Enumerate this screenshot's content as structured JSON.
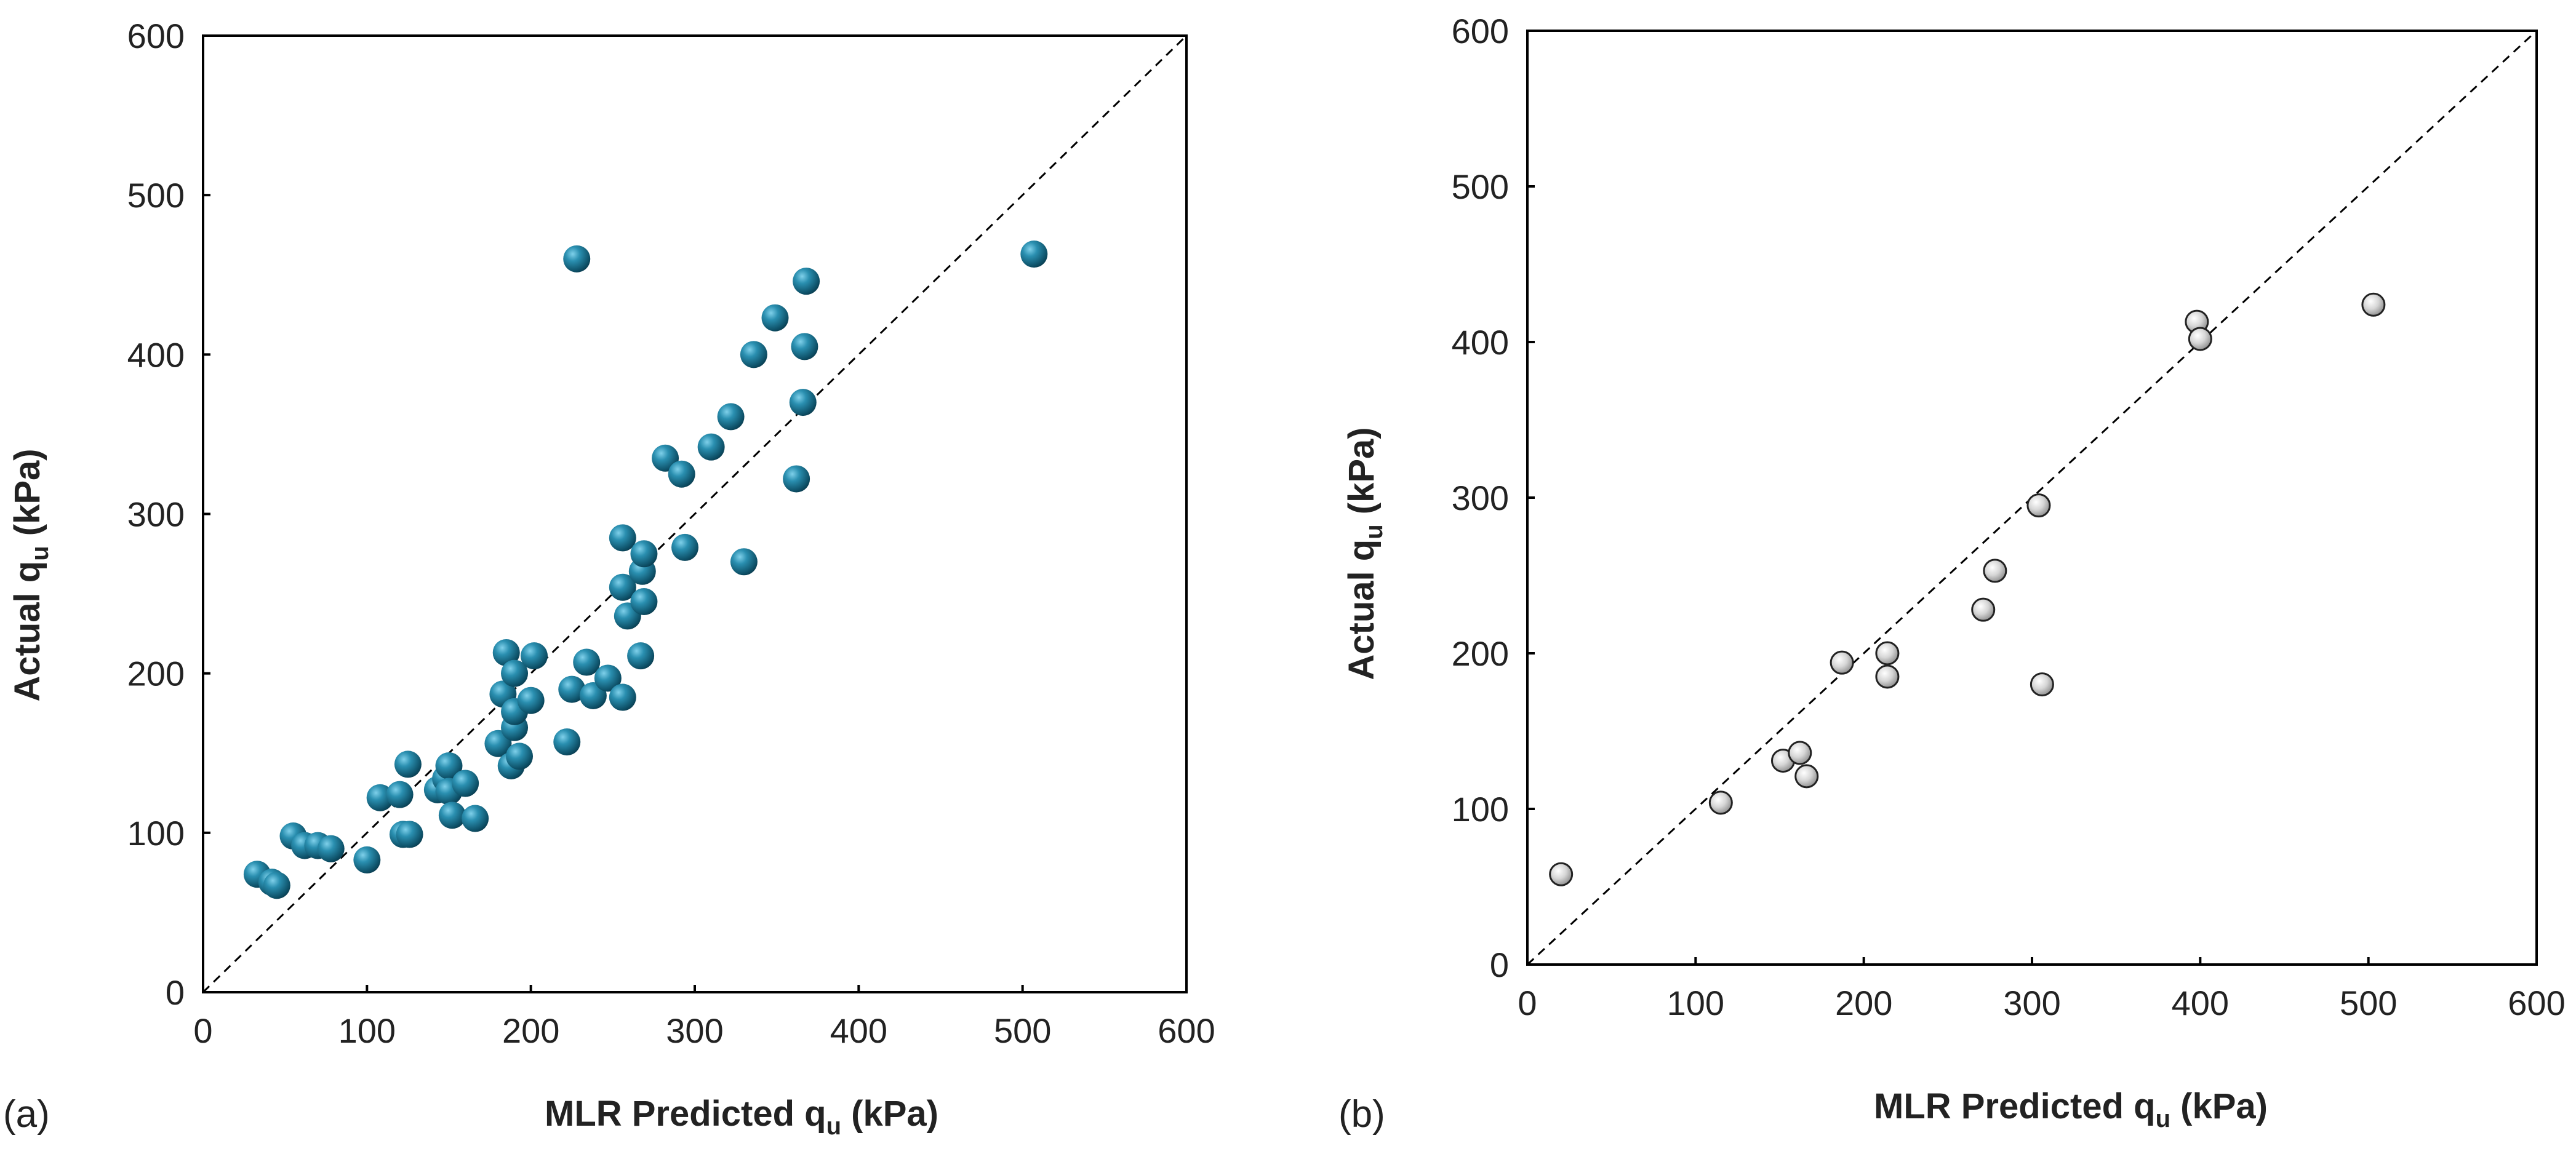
{
  "chart_data": [
    {
      "type": "scatter",
      "panel_label": "(a)",
      "xlabel": {
        "main": "MLR Predicted q",
        "sub": "u",
        "tail": " (kPa)"
      },
      "ylabel": {
        "main": "Actual q",
        "sub": "u",
        "tail": " (kPa)"
      },
      "xlim": [
        0,
        600
      ],
      "ylim": [
        0,
        600
      ],
      "xticks": [
        0,
        100,
        200,
        300,
        400,
        500,
        600
      ],
      "yticks": [
        0,
        100,
        200,
        300,
        400,
        500,
        600
      ],
      "reference_line": "y = x (dashed)",
      "marker_style": "blue sphere",
      "marker_color": "#1f6f8b",
      "points": [
        [
          33,
          74
        ],
        [
          42,
          69
        ],
        [
          45,
          67
        ],
        [
          55,
          98
        ],
        [
          62,
          92
        ],
        [
          70,
          92
        ],
        [
          78,
          90
        ],
        [
          100,
          83
        ],
        [
          108,
          122
        ],
        [
          120,
          124
        ],
        [
          122,
          99
        ],
        [
          125,
          143
        ],
        [
          126,
          99
        ],
        [
          143,
          127
        ],
        [
          148,
          134
        ],
        [
          150,
          142
        ],
        [
          150,
          126
        ],
        [
          152,
          111
        ],
        [
          160,
          131
        ],
        [
          166,
          109
        ],
        [
          180,
          156
        ],
        [
          183,
          187
        ],
        [
          185,
          213
        ],
        [
          188,
          142
        ],
        [
          190,
          166
        ],
        [
          190,
          176
        ],
        [
          190,
          200
        ],
        [
          193,
          148
        ],
        [
          200,
          183
        ],
        [
          202,
          211
        ],
        [
          222,
          157
        ],
        [
          225,
          190
        ],
        [
          228,
          460
        ],
        [
          234,
          207
        ],
        [
          238,
          186
        ],
        [
          247,
          197
        ],
        [
          256,
          185
        ],
        [
          256,
          254
        ],
        [
          256,
          285
        ],
        [
          259,
          236
        ],
        [
          267,
          211
        ],
        [
          268,
          264
        ],
        [
          269,
          245
        ],
        [
          269,
          275
        ],
        [
          282,
          335
        ],
        [
          292,
          325
        ],
        [
          294,
          279
        ],
        [
          310,
          342
        ],
        [
          322,
          361
        ],
        [
          330,
          270
        ],
        [
          336,
          400
        ],
        [
          349,
          423
        ],
        [
          362,
          322
        ],
        [
          366,
          370
        ],
        [
          367,
          405
        ],
        [
          368,
          446
        ],
        [
          507,
          463
        ]
      ]
    },
    {
      "type": "scatter",
      "panel_label": "(b)",
      "xlabel": {
        "main": "MLR Predicted q",
        "sub": "u",
        "tail": " (kPa)"
      },
      "ylabel": {
        "main": "Actual q",
        "sub": "u",
        "tail": " (kPa)"
      },
      "xlim": [
        0,
        600
      ],
      "ylim": [
        0,
        600
      ],
      "xticks": [
        0,
        100,
        200,
        300,
        400,
        500,
        600
      ],
      "yticks": [
        0,
        100,
        200,
        300,
        400,
        500,
        600
      ],
      "reference_line": "y = x (dashed)",
      "marker_style": "grey sphere",
      "marker_color": "#b8b8b8",
      "points": [
        [
          20,
          58
        ],
        [
          115,
          104
        ],
        [
          152,
          131
        ],
        [
          162,
          136
        ],
        [
          166,
          121
        ],
        [
          187,
          194
        ],
        [
          214,
          185
        ],
        [
          214,
          200
        ],
        [
          271,
          228
        ],
        [
          278,
          253
        ],
        [
          304,
          295
        ],
        [
          306,
          180
        ],
        [
          398,
          413
        ],
        [
          400,
          402
        ],
        [
          503,
          424
        ]
      ]
    }
  ]
}
